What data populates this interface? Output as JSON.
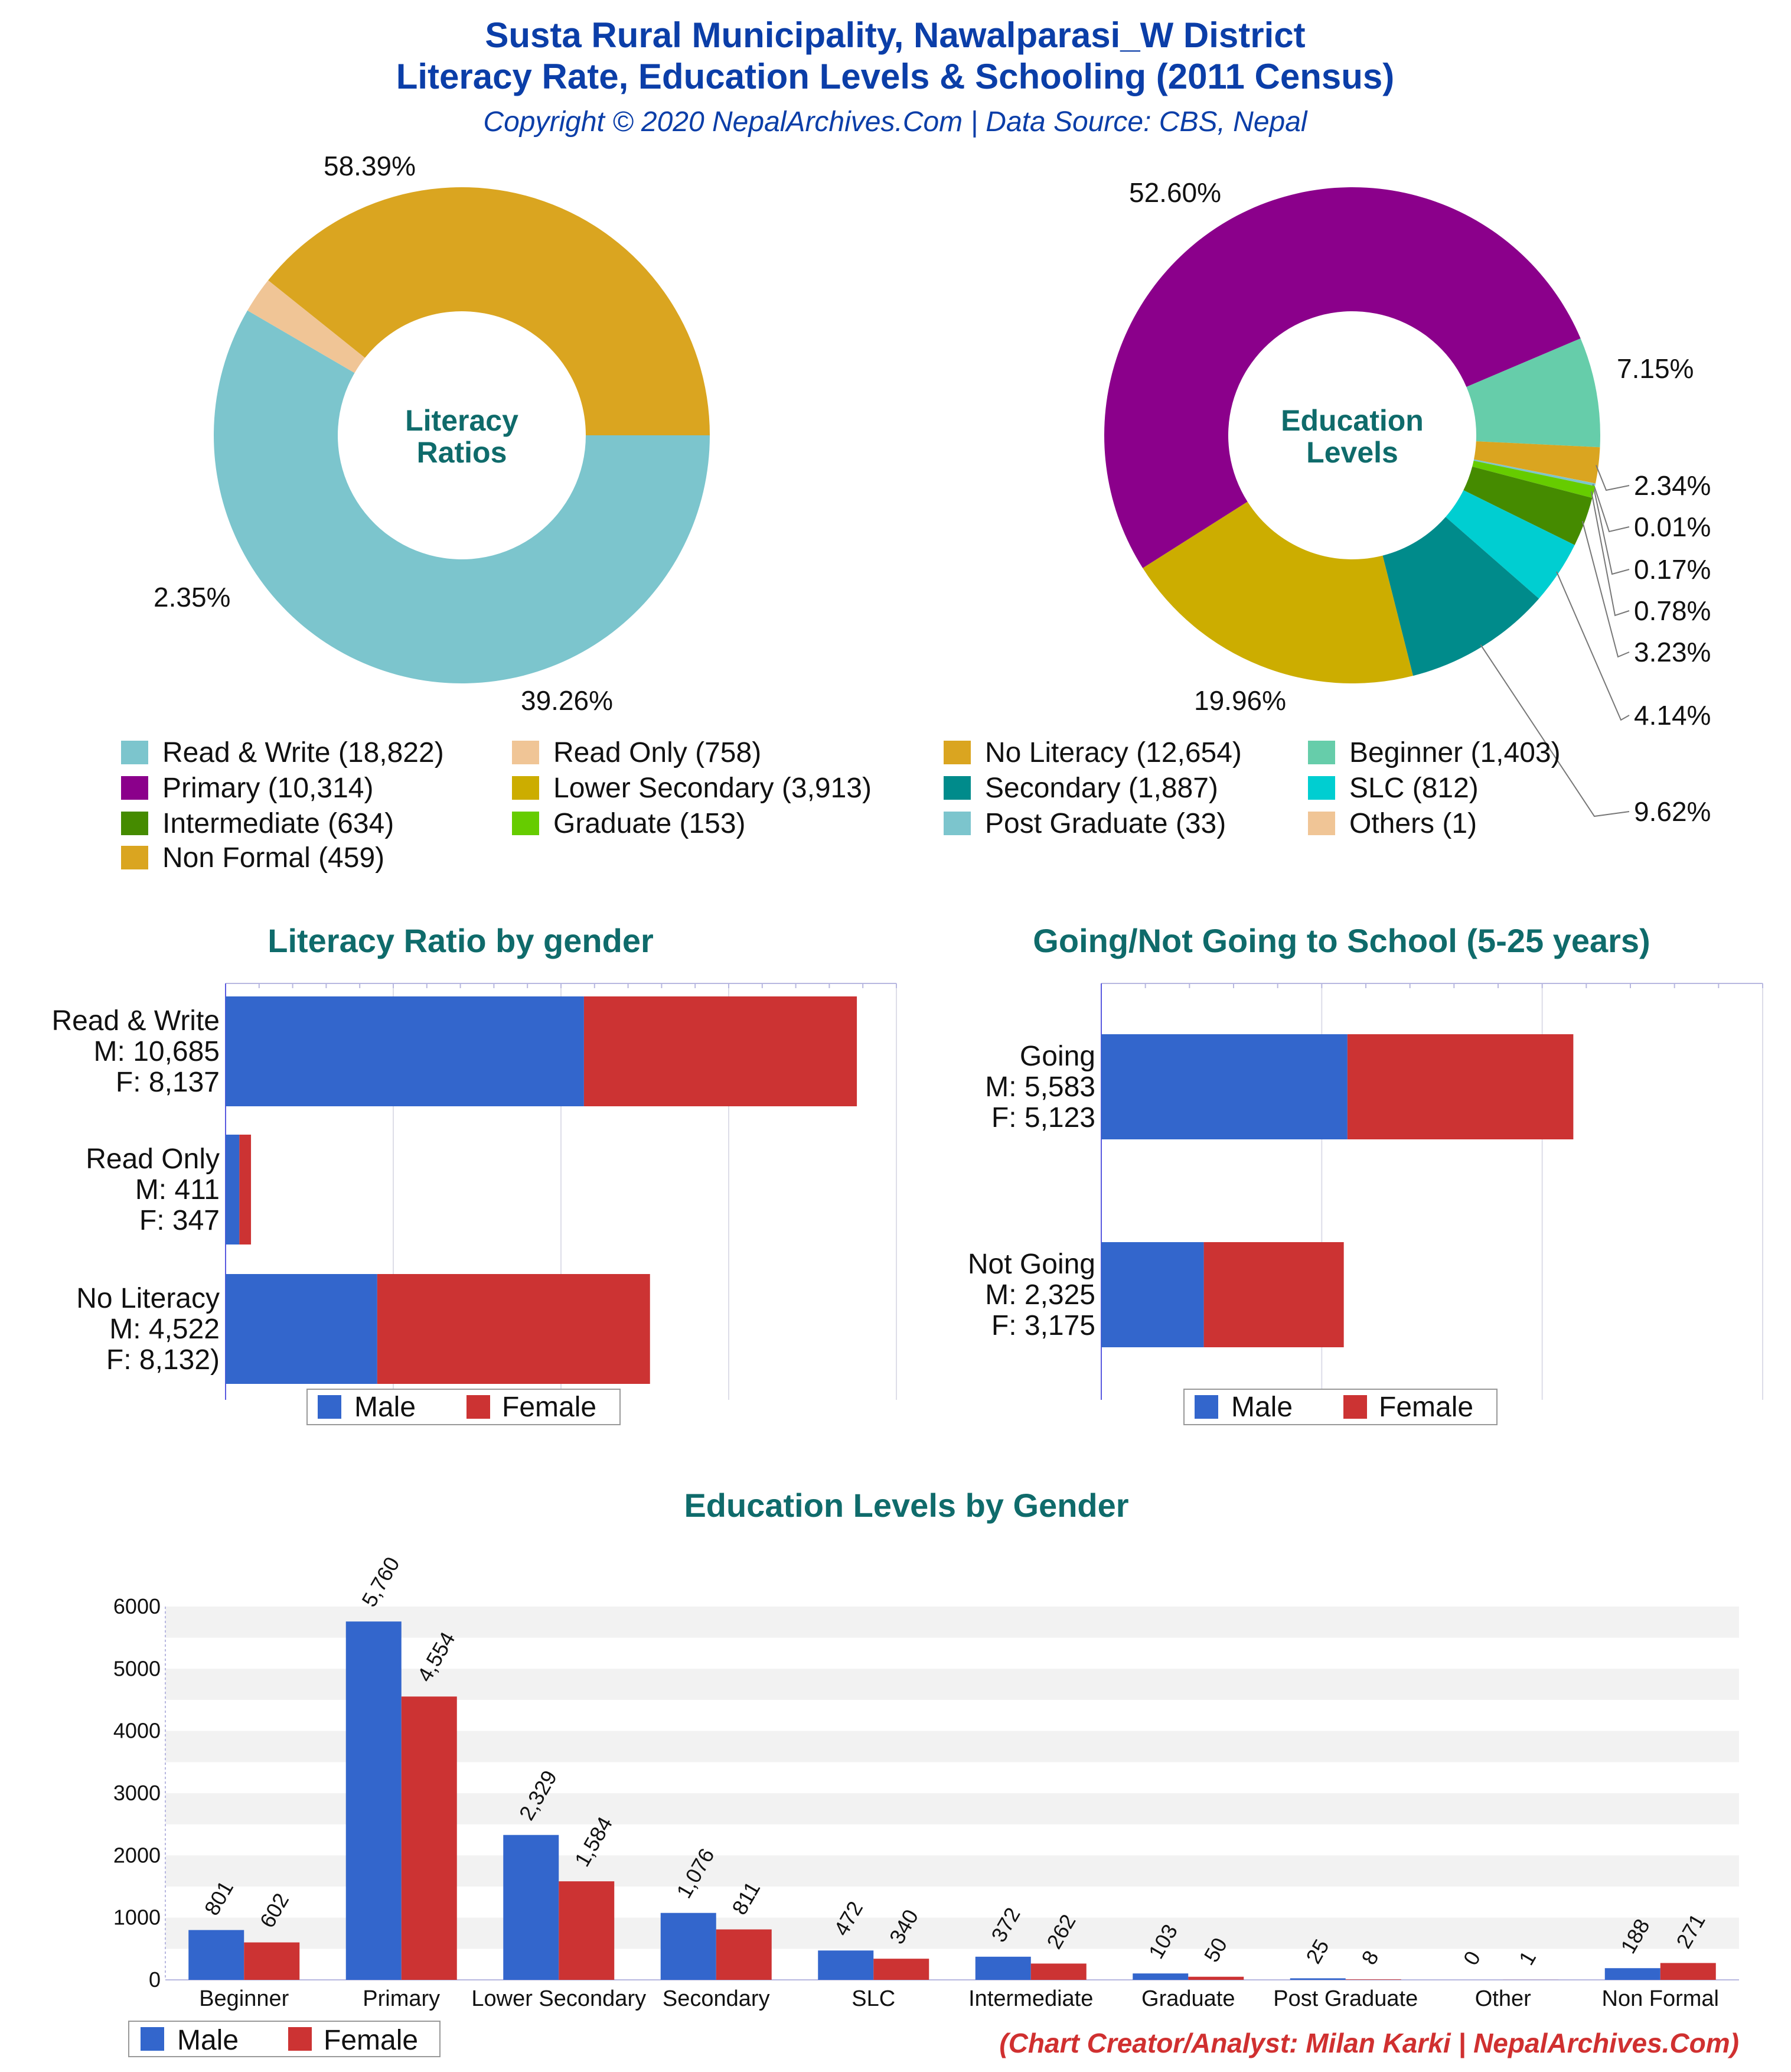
{
  "header": {
    "title_line1": "Susta Rural Municipality, Nawalparasi_W District",
    "title_line2": "Literacy Rate, Education Levels & Schooling (2011 Census)",
    "subtitle": "Copyright © 2020 NepalArchives.Com | Data Source: CBS, Nepal"
  },
  "credit": "(Chart Creator/Analyst: Milan Karki | NepalArchives.Com)",
  "chart_data": [
    {
      "type": "pie",
      "title": "Literacy Ratios",
      "center_label": [
        "Literacy",
        "Ratios"
      ],
      "slices": [
        {
          "name": "Read & Write",
          "value": 18822,
          "percent_label": "58.39%",
          "color": "#7cc5cd"
        },
        {
          "name": "Read Only",
          "value": 758,
          "percent_label": "2.35%",
          "color": "#f0c596"
        },
        {
          "name": "No Literacy",
          "value": 12654,
          "percent_label": "39.26%",
          "color": "#daa520"
        }
      ]
    },
    {
      "type": "pie",
      "title": "Education Levels",
      "center_label": [
        "Education",
        "Levels"
      ],
      "slices": [
        {
          "name": "Beginner",
          "value": 1403,
          "percent_label": "7.15%",
          "color": "#66cdaa"
        },
        {
          "name": "Non Formal",
          "value": 459,
          "percent_label": "2.34%",
          "color": "#daa520"
        },
        {
          "name": "Others",
          "value": 1,
          "percent_label": "0.01%",
          "color": "#f0c596"
        },
        {
          "name": "Post Graduate",
          "value": 33,
          "percent_label": "0.17%",
          "color": "#7cc5cd"
        },
        {
          "name": "Graduate",
          "value": 153,
          "percent_label": "0.78%",
          "color": "#66cc00"
        },
        {
          "name": "Intermediate",
          "value": 634,
          "percent_label": "3.23%",
          "color": "#458b00"
        },
        {
          "name": "SLC",
          "value": 812,
          "percent_label": "4.14%",
          "color": "#00ced1"
        },
        {
          "name": "Secondary",
          "value": 1887,
          "percent_label": "9.62%",
          "color": "#008b8b"
        },
        {
          "name": "Lower Secondary",
          "value": 3913,
          "percent_label": "19.96%",
          "color": "#ccad00"
        },
        {
          "name": "Primary",
          "value": 10314,
          "percent_label": "52.60%",
          "color": "#8b008b"
        }
      ]
    },
    {
      "type": "bar",
      "orientation": "horizontal-stacked",
      "title": "Literacy Ratio by gender",
      "categories": [
        {
          "label_lines": [
            "Read & Write",
            "M: 10,685",
            "F: 8,137"
          ]
        },
        {
          "label_lines": [
            "Read Only",
            "M: 411",
            "F: 347"
          ]
        },
        {
          "label_lines": [
            "No Literacy",
            "M: 4,522",
            "F: 8,132)"
          ]
        }
      ],
      "series": [
        {
          "name": "Male",
          "values": [
            10685,
            411,
            4522
          ],
          "color": "#3366cc"
        },
        {
          "name": "Female",
          "values": [
            8137,
            347,
            8132
          ],
          "color": "#cc3333"
        }
      ],
      "xlim": [
        0,
        20000
      ],
      "legend": "bottom"
    },
    {
      "type": "bar",
      "orientation": "horizontal-stacked",
      "title": "Going/Not Going to School (5-25 years)",
      "categories": [
        {
          "label_lines": [
            "Going",
            "M: 5,583",
            "F: 5,123"
          ]
        },
        {
          "label_lines": [
            "Not Going",
            "M: 2,325",
            "F: 3,175"
          ]
        }
      ],
      "series": [
        {
          "name": "Male",
          "values": [
            5583,
            2325
          ],
          "color": "#3366cc"
        },
        {
          "name": "Female",
          "values": [
            5123,
            3175
          ],
          "color": "#cc3333"
        }
      ],
      "xlim": [
        0,
        15000
      ],
      "legend": "bottom"
    },
    {
      "type": "bar",
      "title": "Education Levels by Gender",
      "categories": [
        "Beginner",
        "Primary",
        "Lower Secondary",
        "Secondary",
        "SLC",
        "Intermediate",
        "Graduate",
        "Post Graduate",
        "Other",
        "Non Formal"
      ],
      "series": [
        {
          "name": "Male",
          "values": [
            801,
            5760,
            2329,
            1076,
            472,
            372,
            103,
            25,
            0,
            188
          ],
          "labels": [
            "801",
            "5,760",
            "2,329",
            "1,076",
            "472",
            "372",
            "103",
            "25",
            "0",
            "188"
          ],
          "color": "#3366cc"
        },
        {
          "name": "Female",
          "values": [
            602,
            4554,
            1584,
            811,
            340,
            262,
            50,
            8,
            1,
            271
          ],
          "labels": [
            "602",
            "4,554",
            "1,584",
            "811",
            "340",
            "262",
            "50",
            "8",
            "1",
            "271"
          ],
          "color": "#cc3333"
        }
      ],
      "ylim": [
        0,
        6000
      ],
      "yticks": [
        "0",
        "1000",
        "2000",
        "3000",
        "4000",
        "5000",
        "6000"
      ],
      "legend": "bottom-left"
    }
  ],
  "top_legend": [
    {
      "label": "Read & Write (18,822)",
      "color": "#7cc5cd"
    },
    {
      "label": "Read Only (758)",
      "color": "#f0c596"
    },
    {
      "label": "No Literacy (12,654)",
      "color": "#daa520"
    },
    {
      "label": "Beginner (1,403)",
      "color": "#66cdaa"
    },
    {
      "label": "Primary (10,314)",
      "color": "#8b008b"
    },
    {
      "label": "Lower Secondary (3,913)",
      "color": "#ccad00"
    },
    {
      "label": "Secondary (1,887)",
      "color": "#008b8b"
    },
    {
      "label": "SLC (812)",
      "color": "#00ced1"
    },
    {
      "label": "Intermediate (634)",
      "color": "#458b00"
    },
    {
      "label": "Graduate (153)",
      "color": "#66cc00"
    },
    {
      "label": "Post Graduate (33)",
      "color": "#7cc5cd"
    },
    {
      "label": "Others (1)",
      "color": "#f0c596"
    },
    {
      "label": "Non Formal (459)",
      "color": "#daa520"
    }
  ]
}
